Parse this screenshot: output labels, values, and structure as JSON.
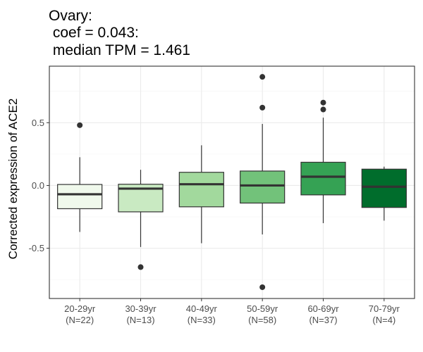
{
  "chart_data": {
    "type": "box",
    "title_lines": [
      "Ovary:",
      " coef = 0.043:",
      " median TPM = 1.461"
    ],
    "xlabel": "",
    "ylabel": "Corrected expression of ACE2",
    "ylim": [
      -0.9,
      0.95
    ],
    "yticks": [
      0.5,
      0.0,
      -0.5
    ],
    "ytick_labels": [
      "0.5",
      "0.0",
      "-0.5"
    ],
    "grid": true,
    "legend": "none",
    "categories": [
      {
        "label": "20-29yr",
        "n_label": "(N=22)",
        "color": "#F0F9EC",
        "whisker_low": -0.37,
        "q1": -0.185,
        "median": -0.07,
        "q3": 0.008,
        "whisker_high": 0.225,
        "outliers": [
          0.48
        ]
      },
      {
        "label": "30-39yr",
        "n_label": "(N=13)",
        "color": "#C9EAC2",
        "whisker_low": -0.49,
        "q1": -0.21,
        "median": -0.025,
        "q3": 0.01,
        "whisker_high": 0.125,
        "outliers": [
          -0.65
        ]
      },
      {
        "label": "40-49yr",
        "n_label": "(N=33)",
        "color": "#A2D99D",
        "whisker_low": -0.46,
        "q1": -0.17,
        "median": 0.01,
        "q3": 0.105,
        "whisker_high": 0.32,
        "outliers": []
      },
      {
        "label": "50-59yr",
        "n_label": "(N=58)",
        "color": "#72C27A",
        "whisker_low": -0.39,
        "q1": -0.14,
        "median": 0.0,
        "q3": 0.115,
        "whisker_high": 0.49,
        "outliers": [
          0.865,
          0.62,
          -0.81
        ]
      },
      {
        "label": "60-69yr",
        "n_label": "(N=37)",
        "color": "#35A254",
        "whisker_low": -0.3,
        "q1": -0.075,
        "median": 0.07,
        "q3": 0.185,
        "whisker_high": 0.54,
        "outliers": [
          0.66,
          0.605
        ]
      },
      {
        "label": "70-79yr",
        "n_label": "(N=4)",
        "color": "#006D2C",
        "whisker_low": -0.28,
        "q1": -0.175,
        "median": -0.01,
        "q3": 0.13,
        "whisker_high": 0.15,
        "outliers": []
      }
    ]
  }
}
